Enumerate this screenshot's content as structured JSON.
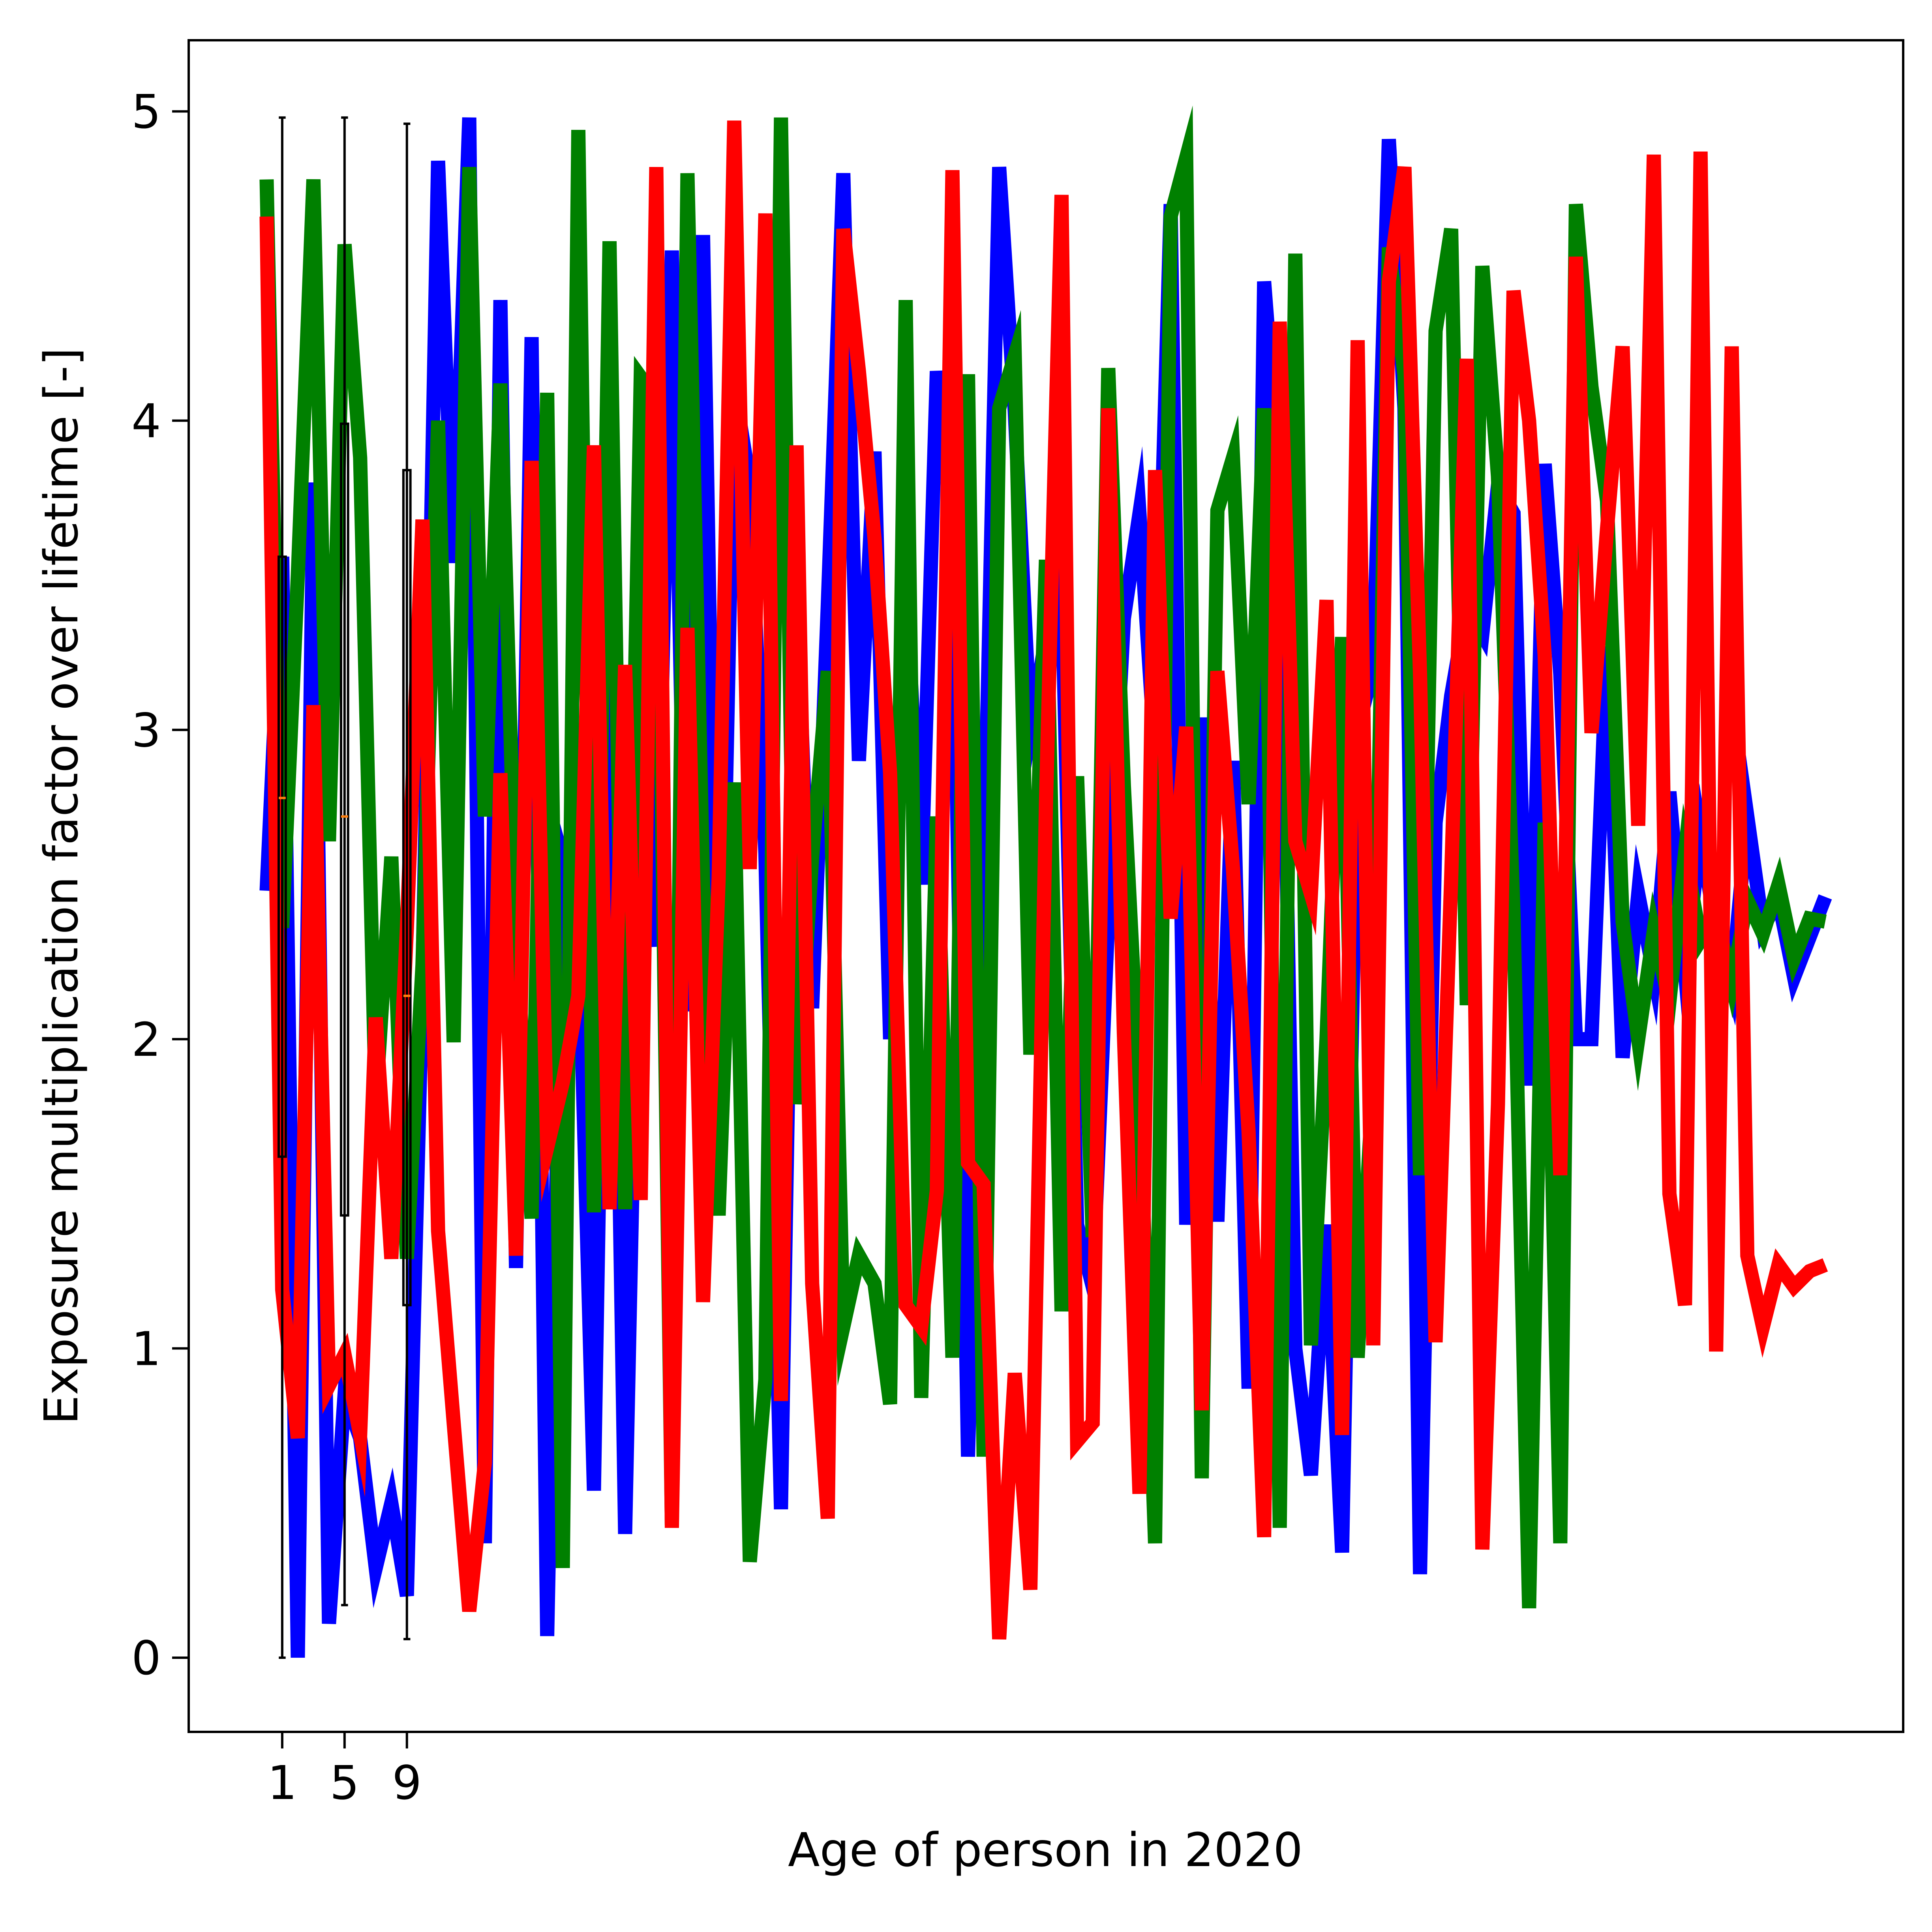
{
  "chart_data": {
    "type": "line",
    "title": "",
    "xlabel": "Age of person in 2020",
    "ylabel": "Exposure multiplication factor over lifetime [-]",
    "xlim": [
      -5,
      105
    ],
    "ylim": [
      -0.24,
      5.23
    ],
    "xticks": [
      1,
      5,
      9
    ],
    "yticks": [
      0,
      1,
      2,
      3,
      4,
      5
    ],
    "grid": false,
    "legend": "none",
    "x": [
      0,
      1,
      2,
      3,
      4,
      5,
      6,
      7,
      8,
      9,
      10,
      11,
      12,
      13,
      14,
      15,
      16,
      17,
      18,
      19,
      20,
      21,
      22,
      23,
      24,
      25,
      26,
      27,
      28,
      29,
      30,
      31,
      32,
      33,
      34,
      35,
      36,
      37,
      38,
      39,
      40,
      41,
      42,
      43,
      44,
      45,
      46,
      47,
      48,
      49,
      50,
      51,
      52,
      53,
      54,
      55,
      56,
      57,
      58,
      59,
      60,
      61,
      62,
      63,
      64,
      65,
      66,
      67,
      68,
      69,
      70,
      71,
      72,
      73,
      74,
      75,
      76,
      77,
      78,
      79,
      80,
      81,
      82,
      83,
      84,
      85,
      86,
      87,
      88,
      89,
      90,
      91,
      92,
      93,
      94,
      95,
      96,
      97,
      98,
      99,
      100
    ],
    "series": [
      {
        "color": "#0000ff",
        "values": [
          2.48,
          3.56,
          0.0,
          3.8,
          0.11,
          0.85,
          0.71,
          0.29,
          0.5,
          0.2,
          2.2,
          4.84,
          3.54,
          4.98,
          0.37,
          4.39,
          1.26,
          4.27,
          0.07,
          2.58,
          2.4,
          0.54,
          3.52,
          0.4,
          2.8,
          2.3,
          4.55,
          2.09,
          4.6,
          1.65,
          4.11,
          3.8,
          2.6,
          0.48,
          3.46,
          2.1,
          3.4,
          4.8,
          2.9,
          3.9,
          2.0,
          3.5,
          2.5,
          4.16,
          3.66,
          0.65,
          2.5,
          4.82,
          4.03,
          3.0,
          3.3,
          3.5,
          1.4,
          1.2,
          2.4,
          3.36,
          3.7,
          2.92,
          4.7,
          1.4,
          3.04,
          1.41,
          2.9,
          0.87,
          4.45,
          3.8,
          1.0,
          0.59,
          1.4,
          0.34,
          3.0,
          3.2,
          4.91,
          4.04,
          0.27,
          2.7,
          3.11,
          3.4,
          3.31,
          3.79,
          3.7,
          1.85,
          3.86,
          3.18,
          2.0,
          2.0,
          3.27,
          1.94,
          2.47,
          2.21,
          2.8,
          2.22,
          2.66,
          2.35,
          2.17,
          2.72,
          2.36,
          2.45,
          2.2,
          2.33,
          2.46
        ]
      },
      {
        "color": "#008000",
        "values": [
          4.78,
          2.36,
          3.5,
          4.78,
          2.64,
          4.57,
          3.88,
          1.79,
          2.59,
          1.29,
          2.24,
          4.0,
          1.99,
          4.82,
          2.72,
          4.12,
          2.37,
          1.42,
          4.09,
          0.29,
          4.94,
          1.44,
          4.58,
          1.45,
          4.14,
          4.07,
          0.43,
          4.8,
          2.5,
          1.43,
          2.83,
          0.31,
          0.9,
          4.98,
          1.79,
          2.59,
          3.19,
          1.07,
          1.3,
          1.21,
          0.82,
          4.39,
          0.84,
          2.72,
          0.97,
          4.15,
          0.65,
          4.04,
          4.21,
          1.95,
          3.55,
          1.12,
          2.85,
          1.36,
          4.17,
          2.82,
          1.82,
          0.37,
          4.66,
          4.85,
          0.58,
          3.71,
          3.88,
          2.76,
          4.04,
          0.42,
          4.54,
          1.01,
          2.0,
          3.3,
          0.97,
          1.87,
          4.56,
          4.15,
          1.56,
          4.29,
          4.62,
          2.11,
          4.5,
          3.82,
          2.4,
          0.16,
          2.7,
          0.37,
          4.7,
          4.11,
          3.74,
          2.38,
          2.0,
          2.35,
          2.12,
          2.6,
          2.32,
          2.4,
          2.18,
          2.45,
          2.34,
          2.5,
          2.26,
          2.39,
          2.38
        ]
      },
      {
        "color": "#ff0000",
        "values": [
          4.66,
          1.19,
          0.71,
          3.08,
          0.88,
          0.98,
          0.72,
          2.07,
          1.29,
          2.36,
          3.68,
          1.38,
          0.76,
          0.15,
          0.63,
          2.86,
          1.3,
          3.87,
          1.65,
          1.86,
          2.14,
          3.92,
          1.45,
          3.21,
          1.48,
          4.82,
          0.42,
          3.33,
          1.15,
          2.52,
          4.97,
          2.55,
          4.67,
          0.83,
          3.92,
          1.21,
          0.45,
          4.62,
          4.16,
          3.62,
          2.86,
          1.14,
          1.07,
          1.51,
          4.81,
          1.6,
          1.53,
          0.06,
          0.92,
          0.22,
          2.76,
          4.73,
          0.7,
          0.76,
          4.04,
          2.02,
          0.53,
          3.84,
          2.39,
          3.01,
          0.8,
          3.19,
          2.55,
          1.7,
          0.39,
          4.32,
          2.64,
          2.47,
          3.42,
          0.72,
          4.26,
          1.01,
          4.45,
          4.82,
          3.18,
          1.02,
          2.52,
          4.2,
          0.35,
          1.79,
          4.42,
          4.0,
          3.24,
          1.56,
          4.53,
          2.99,
          3.65,
          4.24,
          2.69,
          4.86,
          1.5,
          1.14,
          4.87,
          0.99,
          4.24,
          1.3,
          1.07,
          1.27,
          1.2,
          1.25,
          1.27
        ]
      }
    ],
    "boxplots": [
      {
        "x": 1,
        "whisker_low": 0.0,
        "q1": 1.62,
        "median": 2.78,
        "q3": 3.56,
        "whisker_high": 4.98
      },
      {
        "x": 5,
        "whisker_low": 0.17,
        "q1": 1.43,
        "median": 2.72,
        "q3": 3.99,
        "whisker_high": 4.98
      },
      {
        "x": 9,
        "whisker_low": 0.06,
        "q1": 1.14,
        "median": 2.14,
        "q3": 3.84,
        "whisker_high": 4.96
      }
    ],
    "box_color": "#000000",
    "median_color": "#ff7f0e"
  }
}
